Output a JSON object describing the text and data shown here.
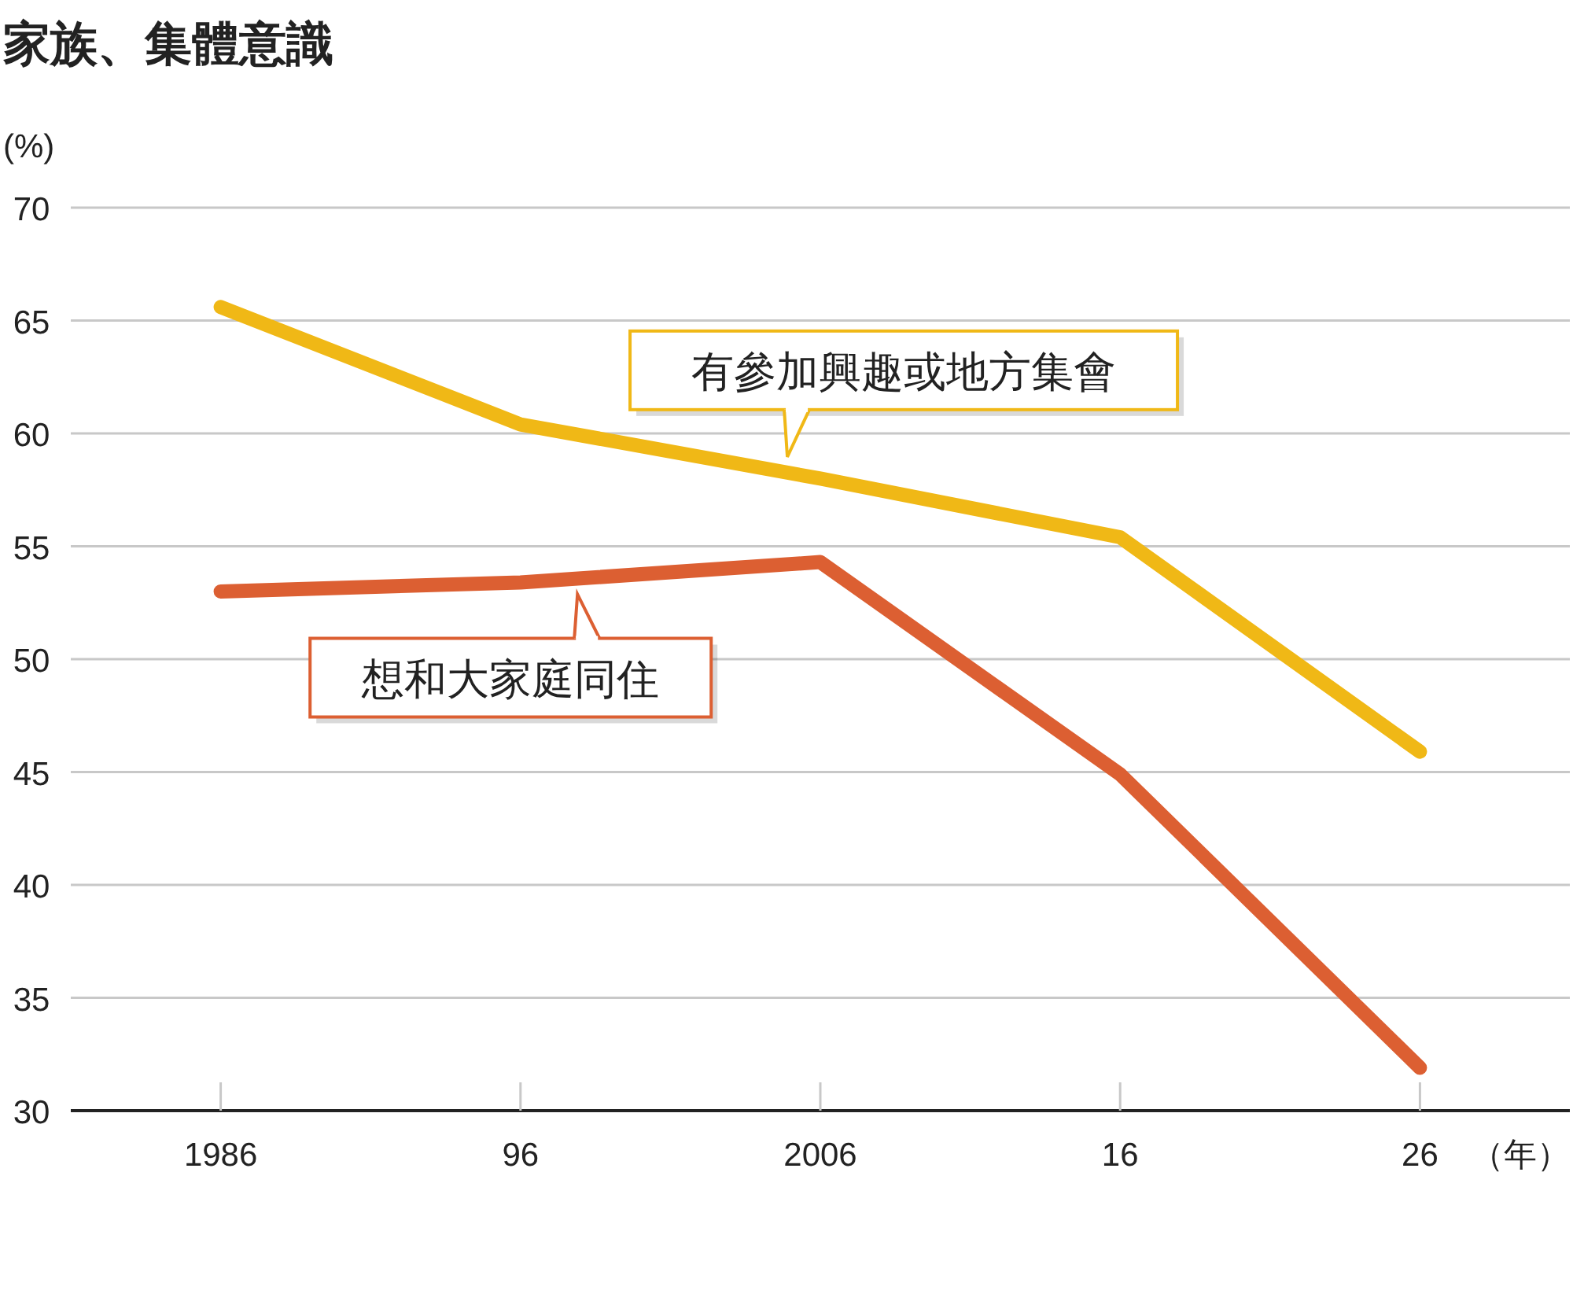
{
  "chart_data": {
    "type": "line",
    "title": "家族、集體意識",
    "ylabel": "(%)",
    "xlabel": "（年）",
    "categories": [
      "1986",
      "96",
      "2006",
      "16",
      "26"
    ],
    "ylim": [
      30,
      70
    ],
    "yticks": [
      30,
      35,
      40,
      45,
      50,
      55,
      60,
      65,
      70
    ],
    "grid": "y",
    "marker": "none",
    "line_style": "solid",
    "series": [
      {
        "name": "有參加興趣或地方集會",
        "color": "#f0b816",
        "values": [
          65.6,
          60.4,
          58.0,
          55.4,
          45.9
        ]
      },
      {
        "name": "想和大家庭同住",
        "color": "#dc5f32",
        "values": [
          53.0,
          53.4,
          54.3,
          44.9,
          31.9
        ]
      }
    ]
  }
}
